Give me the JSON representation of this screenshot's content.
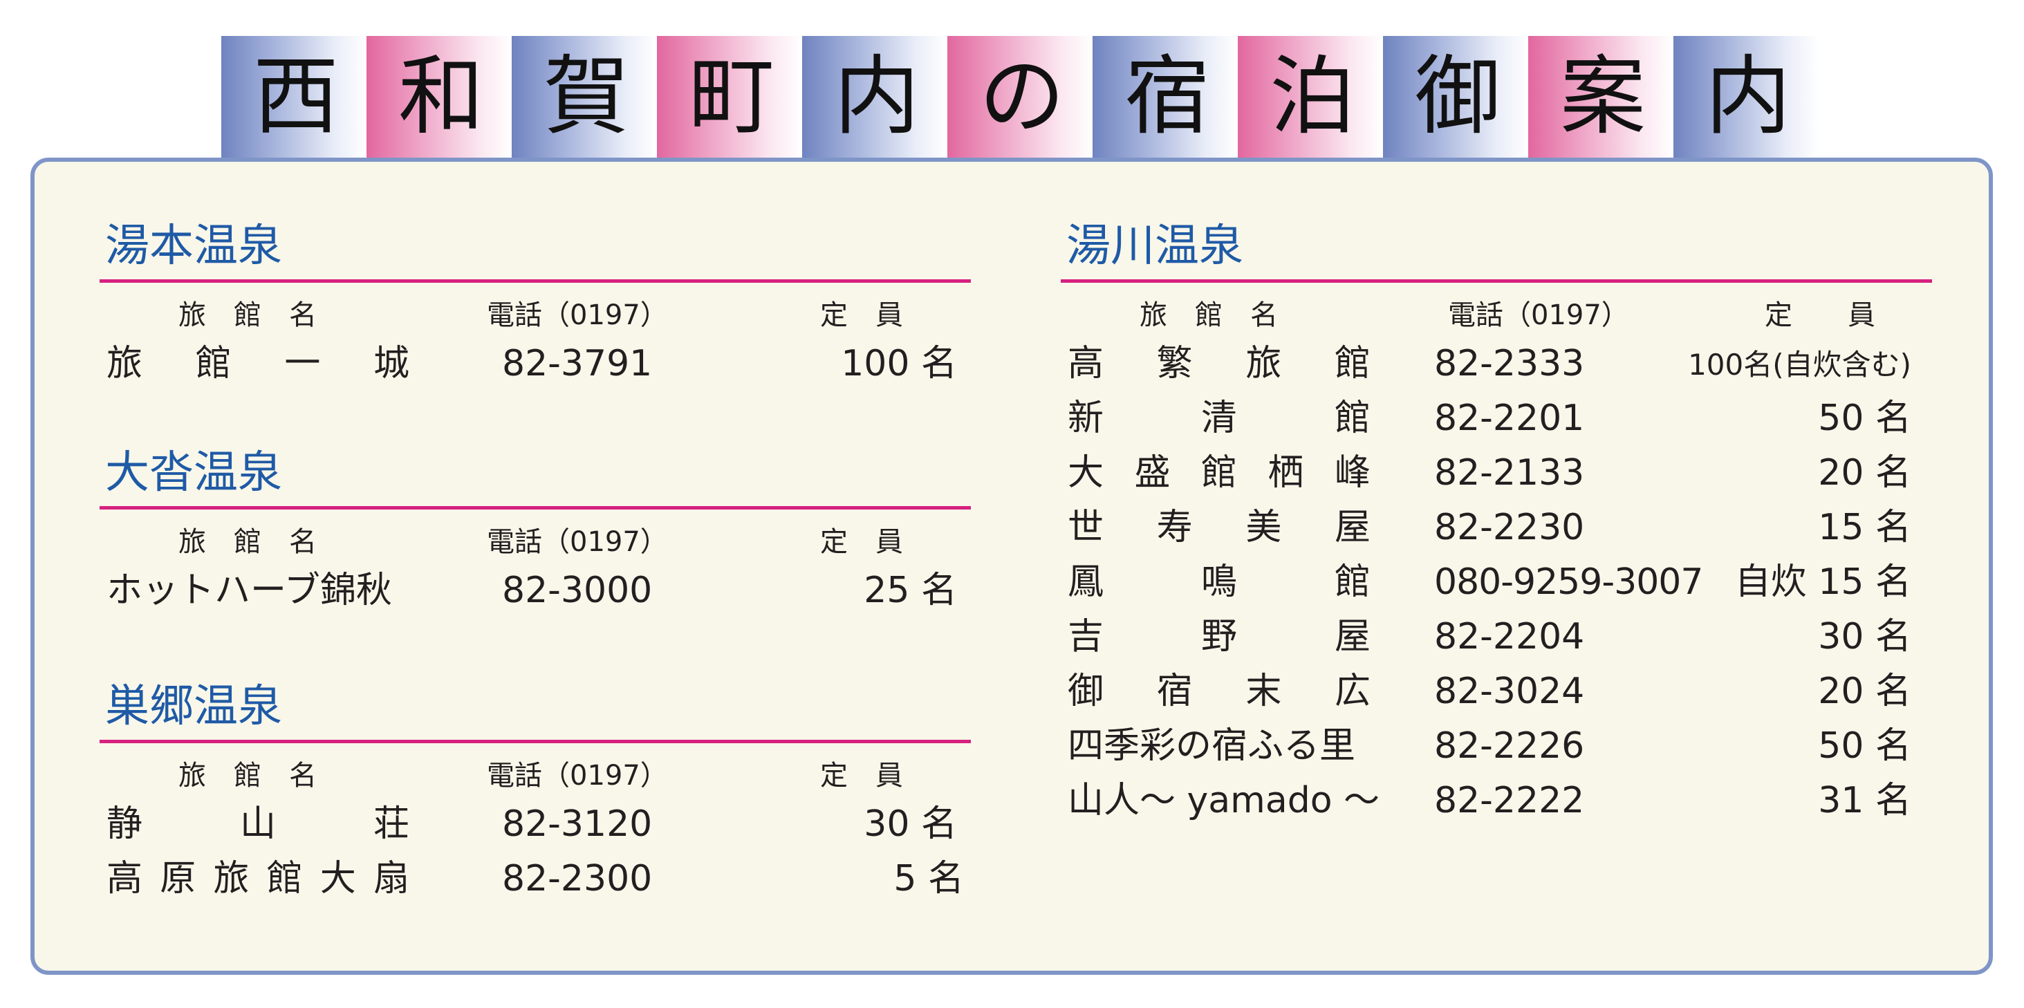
{
  "banner": {
    "chars": [
      "西",
      "和",
      "賀",
      "町",
      "内",
      "の",
      "宿",
      "泊",
      "御",
      "案",
      "内"
    ]
  },
  "headers": {
    "name": "旅　館　名",
    "phone": "電話（0197）",
    "capacity": "定　員",
    "capacity_wide": "定　　員"
  },
  "yumoto": {
    "title": "湯本温泉",
    "rows": [
      {
        "name": [
          "旅",
          "館",
          "一",
          "城"
        ],
        "phone": "82-3791",
        "capacity": "100 名"
      }
    ]
  },
  "oshizawa": {
    "title": "大沓温泉",
    "rows": [
      {
        "name_text": "ホットハーブ錦秋",
        "phone": "82-3000",
        "capacity": "25 名"
      }
    ]
  },
  "sugo": {
    "title": "巣郷温泉",
    "rows": [
      {
        "name": [
          "静",
          "山",
          "荘"
        ],
        "phone": "82-3120",
        "capacity": "30 名"
      },
      {
        "name": [
          "高",
          "原",
          "旅",
          "館",
          "大",
          "扇"
        ],
        "phone": "82-2300",
        "capacity": "5 名"
      }
    ]
  },
  "yukawa": {
    "title": "湯川温泉",
    "rows": [
      {
        "name": [
          "高",
          "繁",
          "旅",
          "館"
        ],
        "phone": "82-2333",
        "capacity": "100名(自炊含む)"
      },
      {
        "name": [
          "新",
          "清",
          "館"
        ],
        "phone": "82-2201",
        "capacity": "50 名"
      },
      {
        "name": [
          "大",
          "盛",
          "館",
          "栖",
          "峰"
        ],
        "phone": "82-2133",
        "capacity": "20 名"
      },
      {
        "name": [
          "世",
          "寿",
          "美",
          "屋"
        ],
        "phone": "82-2230",
        "capacity": "15 名"
      },
      {
        "name": [
          "鳳",
          "鳴",
          "館"
        ],
        "phone": "080-9259-3007",
        "capacity": "自炊 15 名"
      },
      {
        "name": [
          "吉",
          "野",
          "屋"
        ],
        "phone": "82-2204",
        "capacity": "30 名"
      },
      {
        "name": [
          "御",
          "宿",
          "末",
          "広"
        ],
        "phone": "82-3024",
        "capacity": "20 名"
      },
      {
        "name_text": "四季彩の宿ふる里",
        "phone": "82-2226",
        "capacity": "50 名"
      },
      {
        "name_text": "山人～ yamado ～",
        "phone": "82-2222",
        "capacity": "31 名"
      }
    ]
  }
}
